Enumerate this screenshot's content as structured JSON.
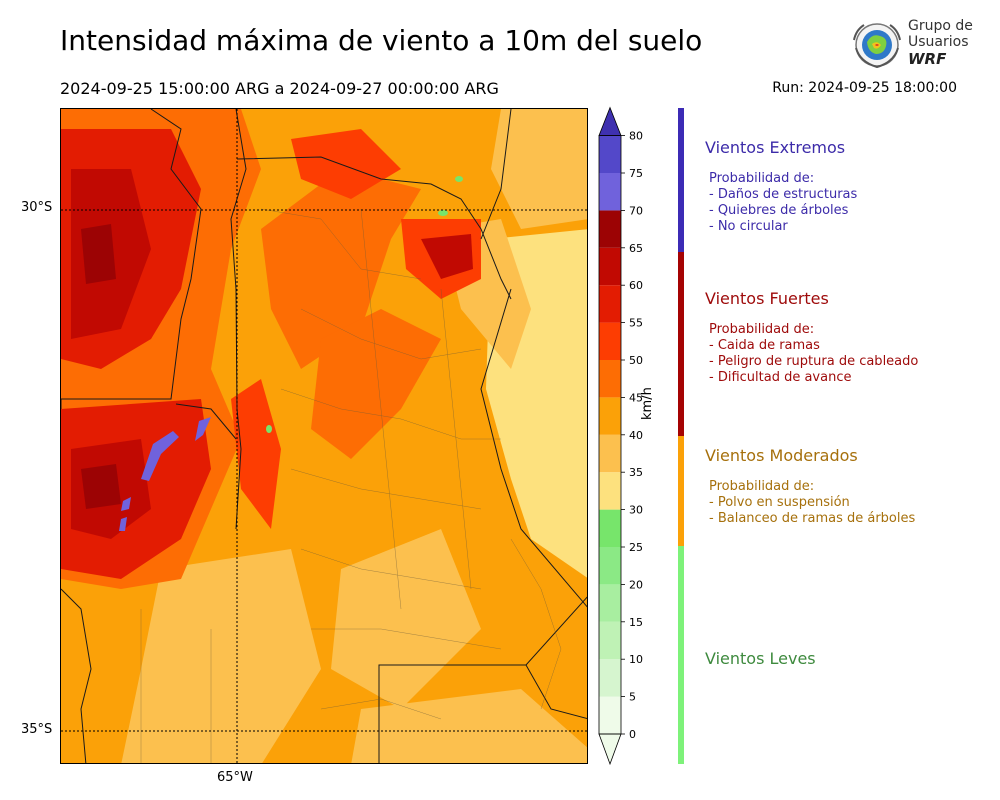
{
  "header": {
    "title": "Intensidad máxima de viento a 10m del suelo",
    "period": "2024-09-25 15:00:00 ARG  a  2024-09-27 00:00:00 ARG",
    "run": "Run: 2024-09-25 18:00:00"
  },
  "logo": {
    "line1": "Grupo de",
    "line2": "Usuarios",
    "line3": "WRF"
  },
  "map": {
    "lat_labels": [
      "30°S",
      "35°S"
    ],
    "lon_labels": [
      "65°W"
    ]
  },
  "colorbar": {
    "unit": "km/h",
    "ticks": [
      "0",
      "5",
      "10",
      "15",
      "20",
      "25",
      "30",
      "35",
      "40",
      "45",
      "50",
      "55",
      "60",
      "65",
      "70",
      "75",
      "80"
    ],
    "colors": [
      "#effbe9",
      "#d6f5cf",
      "#bff2b5",
      "#a8eea0",
      "#8be985",
      "#77e56b",
      "#fde17e",
      "#fcc04e",
      "#fba108",
      "#fd6d04",
      "#fd3d02",
      "#e31c02",
      "#c10902",
      "#9c0304",
      "#7062dc",
      "#5348c9",
      "#3f31b0"
    ]
  },
  "categories": [
    {
      "title": "Vientos Extremos",
      "color": "#3c2ba9",
      "prob_label": "Probabilidad de:",
      "items": [
        "- Daños de estructuras",
        "- Quiebres de árboles",
        "- No circular"
      ]
    },
    {
      "title": "Vientos Fuertes",
      "color": "#9e0a0a",
      "prob_label": "Probabilidad de:",
      "items": [
        "- Caida de ramas",
        "- Peligro de ruptura de cableado",
        "- Dificultad de avance"
      ]
    },
    {
      "title": "Vientos Moderados",
      "color": "#a6700c",
      "prob_label": "Probabilidad de:",
      "items": [
        "- Polvo en suspensión",
        "- Balanceo de ramas de árboles"
      ]
    },
    {
      "title": "Vientos Leves",
      "color": "#3e8a3e",
      "prob_label": "",
      "items": []
    }
  ],
  "category_bar_colors": [
    "#3c2bb5",
    "#a50303",
    "#fba108",
    "#7ef27a"
  ]
}
